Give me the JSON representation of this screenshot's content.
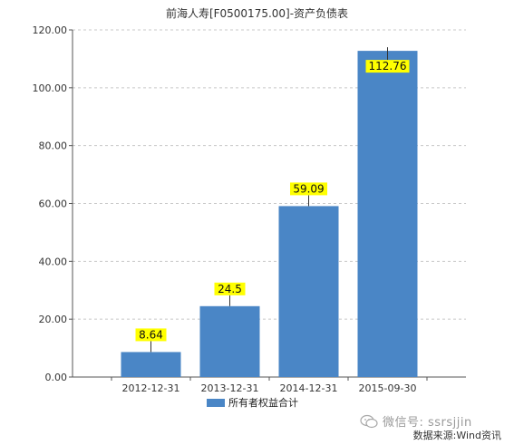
{
  "chart_data": {
    "type": "bar",
    "title": "前海人寿[F0500175.00]-资产负债表",
    "categories": [
      "2012-12-31",
      "2013-12-31",
      "2014-12-31",
      "2015-09-30"
    ],
    "series": [
      {
        "name": "所有者权益合计",
        "values": [
          8.64,
          24.5,
          59.09,
          112.76
        ]
      }
    ],
    "data_labels": [
      "8.64",
      "24.5",
      "59.09",
      "112.76"
    ],
    "yticks": [
      "0.00",
      "20.00",
      "40.00",
      "60.00",
      "80.00",
      "100.00",
      "120.00"
    ],
    "ylim": [
      0,
      120
    ],
    "grid": true,
    "legend_position": "bottom",
    "colors": {
      "bar": "#4a86c6",
      "label_bg": "#ffff00",
      "grid": "#c8c8c8"
    }
  },
  "watermark": {
    "text": "微信号: ssrsjjin",
    "icon": "wechat-icon"
  },
  "source": "数据来源:Wind资讯"
}
